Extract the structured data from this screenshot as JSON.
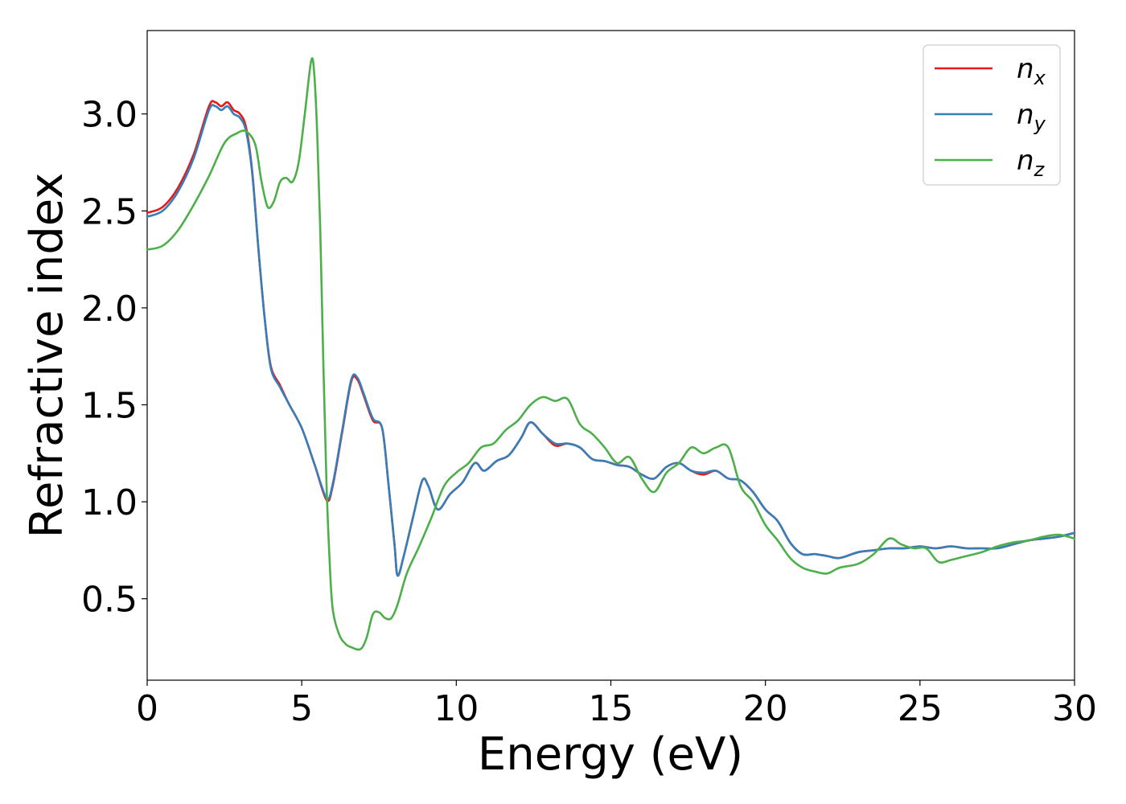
{
  "chart_data": {
    "type": "line",
    "title": "",
    "xlabel": "Energy (eV)",
    "ylabel": "Refractive index",
    "xlim": [
      0,
      30
    ],
    "ylim": [
      0.08,
      3.43
    ],
    "xticks": [
      0,
      5,
      10,
      15,
      20,
      25,
      30
    ],
    "xtick_labels": [
      "0",
      "5",
      "10",
      "15",
      "20",
      "25",
      "30"
    ],
    "yticks": [
      0.5,
      1.0,
      1.5,
      2.0,
      2.5,
      3.0
    ],
    "ytick_labels": [
      "0.5",
      "1.0",
      "1.5",
      "2.0",
      "2.5",
      "3.0"
    ],
    "grid": false,
    "legend_position": "top-right",
    "series": [
      {
        "name": "n",
        "subscript": "x",
        "color": "#e41a1c",
        "x": [
          0,
          0.5,
          1.0,
          1.5,
          2.0,
          2.2,
          2.4,
          2.6,
          2.8,
          3.0,
          3.2,
          3.4,
          3.6,
          3.8,
          4.0,
          4.3,
          4.6,
          5.0,
          5.4,
          5.8,
          6.0,
          6.3,
          6.6,
          6.8,
          7.0,
          7.3,
          7.6,
          7.8,
          8.0,
          8.1,
          8.3,
          8.6,
          8.9,
          9.1,
          9.4,
          9.8,
          10.2,
          10.6,
          10.9,
          11.3,
          11.7,
          12.1,
          12.4,
          12.8,
          13.2,
          13.6,
          14.0,
          14.4,
          14.8,
          15.2,
          15.6,
          16.0,
          16.4,
          16.8,
          17.2,
          17.6,
          18.0,
          18.4,
          18.8,
          19.2,
          19.6,
          20.0,
          20.4,
          20.8,
          21.2,
          21.6,
          22.0,
          22.4,
          23.0,
          23.5,
          24.0,
          24.5,
          25.0,
          25.5,
          26.0,
          26.5,
          27.0,
          27.5,
          28.0,
          28.5,
          29.0,
          29.5,
          30.0
        ],
        "y": [
          2.49,
          2.52,
          2.62,
          2.79,
          3.04,
          3.06,
          3.04,
          3.06,
          3.02,
          3.0,
          2.93,
          2.7,
          2.3,
          1.95,
          1.7,
          1.6,
          1.5,
          1.38,
          1.2,
          1.01,
          1.08,
          1.35,
          1.62,
          1.63,
          1.55,
          1.42,
          1.38,
          1.1,
          0.78,
          0.62,
          0.72,
          0.92,
          1.11,
          1.08,
          0.96,
          1.04,
          1.1,
          1.2,
          1.16,
          1.21,
          1.24,
          1.33,
          1.41,
          1.35,
          1.29,
          1.3,
          1.28,
          1.22,
          1.21,
          1.19,
          1.18,
          1.14,
          1.12,
          1.18,
          1.2,
          1.16,
          1.14,
          1.16,
          1.12,
          1.11,
          1.05,
          0.96,
          0.9,
          0.79,
          0.73,
          0.73,
          0.72,
          0.71,
          0.74,
          0.75,
          0.76,
          0.76,
          0.77,
          0.76,
          0.77,
          0.76,
          0.76,
          0.76,
          0.78,
          0.8,
          0.81,
          0.82,
          0.84
        ]
      },
      {
        "name": "n",
        "subscript": "y",
        "color": "#377eb8",
        "x": [
          0,
          0.5,
          1.0,
          1.5,
          2.0,
          2.2,
          2.4,
          2.6,
          2.8,
          3.0,
          3.2,
          3.4,
          3.6,
          3.8,
          4.0,
          4.3,
          4.6,
          5.0,
          5.4,
          5.8,
          6.0,
          6.3,
          6.6,
          6.8,
          7.0,
          7.3,
          7.6,
          7.8,
          8.0,
          8.1,
          8.3,
          8.6,
          8.9,
          9.1,
          9.4,
          9.8,
          10.2,
          10.6,
          10.9,
          11.3,
          11.7,
          12.1,
          12.4,
          12.8,
          13.2,
          13.6,
          14.0,
          14.4,
          14.8,
          15.2,
          15.6,
          16.0,
          16.4,
          16.8,
          17.2,
          17.6,
          18.0,
          18.4,
          18.8,
          19.2,
          19.6,
          20.0,
          20.4,
          20.8,
          21.2,
          21.6,
          22.0,
          22.4,
          23.0,
          23.5,
          24.0,
          24.5,
          25.0,
          25.5,
          26.0,
          26.5,
          27.0,
          27.5,
          28.0,
          28.5,
          29.0,
          29.5,
          30.0
        ],
        "y": [
          2.47,
          2.5,
          2.6,
          2.77,
          3.02,
          3.04,
          3.02,
          3.04,
          3.0,
          2.98,
          2.91,
          2.69,
          2.3,
          1.95,
          1.69,
          1.59,
          1.5,
          1.38,
          1.2,
          1.02,
          1.09,
          1.36,
          1.63,
          1.64,
          1.56,
          1.43,
          1.38,
          1.1,
          0.78,
          0.62,
          0.72,
          0.92,
          1.11,
          1.08,
          0.96,
          1.04,
          1.1,
          1.2,
          1.16,
          1.21,
          1.24,
          1.33,
          1.41,
          1.35,
          1.3,
          1.3,
          1.28,
          1.22,
          1.21,
          1.19,
          1.18,
          1.14,
          1.12,
          1.18,
          1.2,
          1.16,
          1.15,
          1.16,
          1.12,
          1.11,
          1.05,
          0.96,
          0.9,
          0.79,
          0.73,
          0.73,
          0.72,
          0.71,
          0.74,
          0.75,
          0.76,
          0.76,
          0.77,
          0.76,
          0.77,
          0.76,
          0.76,
          0.76,
          0.78,
          0.8,
          0.81,
          0.82,
          0.84
        ]
      },
      {
        "name": "n",
        "subscript": "z",
        "color": "#4daf4a",
        "x": [
          0,
          0.5,
          1.0,
          1.5,
          2.0,
          2.5,
          2.9,
          3.2,
          3.5,
          3.7,
          3.9,
          4.1,
          4.3,
          4.5,
          4.7,
          4.9,
          5.1,
          5.3,
          5.4,
          5.5,
          5.6,
          5.7,
          5.8,
          5.9,
          6.0,
          6.2,
          6.4,
          6.6,
          6.9,
          7.1,
          7.3,
          7.5,
          7.7,
          7.9,
          8.1,
          8.4,
          8.8,
          9.2,
          9.6,
          10.0,
          10.4,
          10.8,
          11.2,
          11.6,
          12.0,
          12.4,
          12.8,
          13.2,
          13.6,
          14.0,
          14.4,
          14.8,
          15.2,
          15.6,
          16.0,
          16.4,
          16.8,
          17.2,
          17.6,
          18.0,
          18.4,
          18.8,
          19.2,
          19.6,
          20.0,
          20.4,
          20.8,
          21.2,
          21.6,
          22.0,
          22.4,
          23.0,
          23.5,
          24.0,
          24.4,
          24.8,
          25.2,
          25.6,
          26.0,
          26.5,
          27.0,
          27.5,
          28.0,
          28.5,
          29.0,
          29.5,
          30.0
        ],
        "y": [
          2.3,
          2.32,
          2.4,
          2.53,
          2.68,
          2.85,
          2.9,
          2.91,
          2.84,
          2.65,
          2.52,
          2.55,
          2.65,
          2.67,
          2.65,
          2.75,
          3.0,
          3.27,
          3.22,
          2.9,
          2.4,
          1.7,
          1.1,
          0.7,
          0.45,
          0.32,
          0.27,
          0.25,
          0.24,
          0.3,
          0.42,
          0.43,
          0.4,
          0.4,
          0.47,
          0.63,
          0.77,
          0.92,
          1.08,
          1.15,
          1.2,
          1.28,
          1.3,
          1.37,
          1.42,
          1.5,
          1.54,
          1.52,
          1.53,
          1.4,
          1.35,
          1.28,
          1.2,
          1.23,
          1.12,
          1.05,
          1.15,
          1.2,
          1.28,
          1.25,
          1.28,
          1.28,
          1.08,
          1.0,
          0.88,
          0.8,
          0.71,
          0.66,
          0.64,
          0.63,
          0.66,
          0.68,
          0.73,
          0.81,
          0.78,
          0.76,
          0.76,
          0.69,
          0.7,
          0.72,
          0.74,
          0.77,
          0.79,
          0.8,
          0.82,
          0.83,
          0.81
        ]
      }
    ]
  }
}
